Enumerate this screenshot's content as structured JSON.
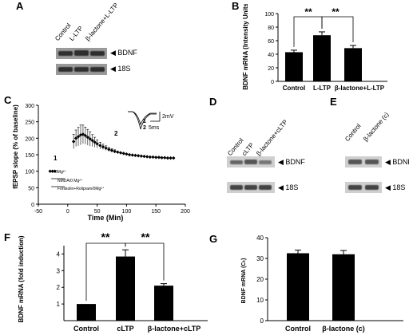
{
  "labels": {
    "A": "A",
    "B": "B",
    "C": "C",
    "D": "D",
    "E": "E",
    "F": "F",
    "G": "G"
  },
  "gels": {
    "A": {
      "lanes": [
        "Control",
        "L-LTP",
        "β-lactone+L-LTP"
      ],
      "rows": [
        "◀ BDNF",
        "◀ 18S"
      ]
    },
    "D": {
      "lanes": [
        "Control",
        "cLTP",
        "β-lactone+cLTP"
      ],
      "rows": [
        "◀ BDNF",
        "◀ 18S"
      ]
    },
    "E": {
      "lanes": [
        "Control",
        "β-lactone (c)"
      ],
      "rows": [
        "◀ BDNF",
        "◀ 18S"
      ]
    }
  },
  "colors": {
    "bar": "#000000",
    "gel_bg": "#9a9a9a",
    "band": "#2f2f2f"
  },
  "chart_data": [
    {
      "id": "B",
      "type": "bar",
      "categories": [
        "Control",
        "L-LTP",
        "β-lactone+L-LTP"
      ],
      "values": [
        43,
        68,
        49
      ],
      "errors": [
        3,
        5,
        4
      ],
      "ylabel": "BDNF mRNA (Intensity Units)",
      "ylim": [
        0,
        100
      ],
      "yticks": [
        0,
        20,
        40,
        60,
        80,
        100
      ],
      "significance": [
        {
          "from": 0,
          "to": 1,
          "label": "**"
        },
        {
          "from": 1,
          "to": 2,
          "label": "**"
        }
      ]
    },
    {
      "id": "C",
      "type": "scatter",
      "xlabel": "Time (Min)",
      "ylabel": "fEPSP slope (% of baseline)",
      "xlim": [
        -50,
        200
      ],
      "ylim": [
        0,
        300
      ],
      "xticks": [
        -50,
        0,
        50,
        100,
        150,
        200
      ],
      "yticks": [
        0,
        50,
        100,
        150,
        200,
        250,
        300
      ],
      "x": [
        -30,
        -26,
        -22,
        10,
        14,
        18,
        22,
        26,
        30,
        34,
        38,
        42,
        46,
        50,
        55,
        60,
        65,
        70,
        75,
        80,
        85,
        90,
        95,
        100,
        105,
        110,
        115,
        120,
        125,
        130,
        135,
        140,
        145,
        150,
        155,
        160,
        165,
        170,
        175,
        180
      ],
      "y": [
        100,
        100,
        100,
        190,
        200,
        205,
        210,
        212,
        208,
        203,
        198,
        193,
        188,
        183,
        178,
        174,
        170,
        166,
        163,
        160,
        158,
        156,
        154,
        152,
        150,
        149,
        148,
        147,
        146,
        145,
        144,
        143,
        143,
        142,
        142,
        141,
        141,
        140,
        140,
        140
      ],
      "errors": [
        3,
        3,
        3,
        22,
        25,
        28,
        30,
        28,
        26,
        24,
        22,
        18,
        15,
        12,
        10,
        8,
        7,
        6,
        5,
        5,
        4,
        4,
        4,
        4,
        3,
        3,
        3,
        3,
        3,
        3,
        3,
        3,
        3,
        3,
        3,
        3,
        3,
        3,
        3,
        3
      ],
      "annotations": {
        "point1": "1",
        "point2": "2",
        "mg": "0Mg²⁺",
        "nmda": "NMDA/0 Mg²⁺",
        "forskolin": "Forskolin+Rolipram/0Mg²⁺"
      },
      "inset": {
        "trace1": "1",
        "trace2": "2",
        "scale_v": "2mV",
        "scale_t": "5ms"
      }
    },
    {
      "id": "F",
      "type": "bar",
      "categories": [
        "Control",
        "cLTP",
        "β-lactone+cLTP"
      ],
      "values": [
        1.0,
        3.85,
        2.1
      ],
      "errors": [
        0,
        0.4,
        0.12
      ],
      "ylabel": "BDNF mRNA (fold induction)",
      "ylim": [
        0,
        4.5
      ],
      "yticks": [
        1,
        2,
        3,
        4
      ],
      "significance": [
        {
          "from": 0,
          "to": 1,
          "label": "**"
        },
        {
          "from": 1,
          "to": 2,
          "label": "**"
        }
      ]
    },
    {
      "id": "G",
      "type": "bar",
      "categories": [
        "Control",
        "β-lactone (c)"
      ],
      "values": [
        32.5,
        32
      ],
      "errors": [
        1.5,
        1.8
      ],
      "ylabel": "BDNF mRNA (Cₜ)",
      "ylim": [
        0,
        40
      ],
      "yticks": [
        0,
        10,
        20,
        30,
        40
      ]
    }
  ]
}
